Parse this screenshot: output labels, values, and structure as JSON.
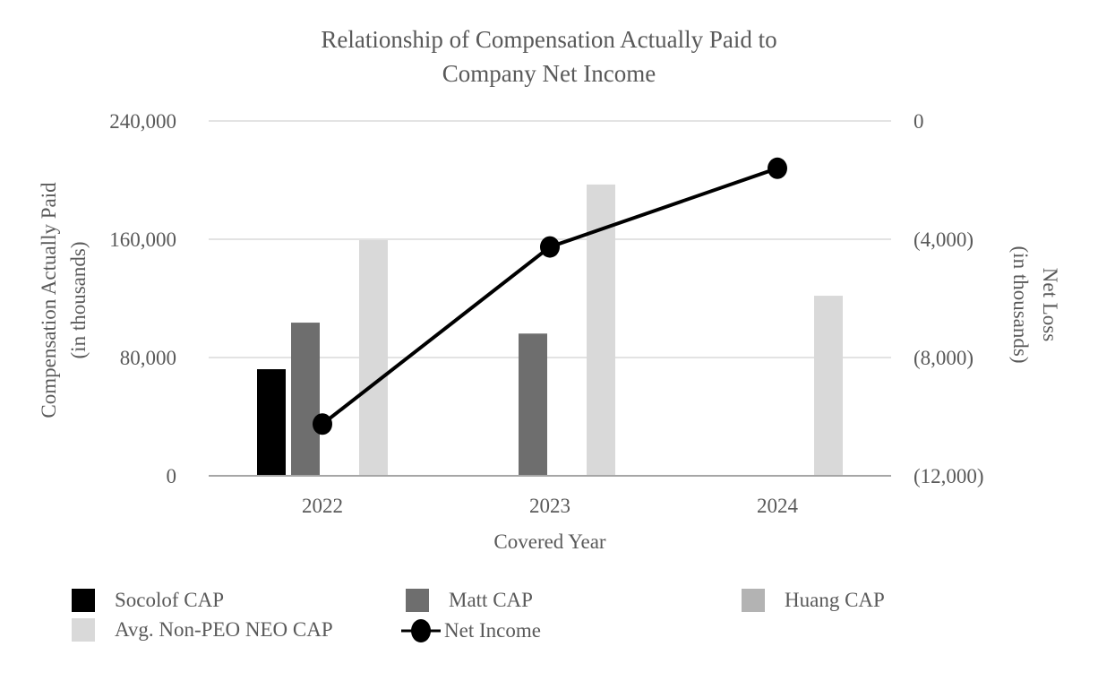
{
  "chart_data": {
    "type": "bar",
    "title_lines": [
      "Relationship of Compensation Actually Paid to",
      "Company Net Income"
    ],
    "xlabel": "Covered Year",
    "ylabel_lines": [
      "Compensation Actually Paid",
      "(in thousands)"
    ],
    "y2label_lines": [
      "Net Loss",
      "(in thousands)"
    ],
    "categories": [
      "2022",
      "2023",
      "2024"
    ],
    "ylim": [
      0,
      240000
    ],
    "y_ticks": [
      0,
      80000,
      160000,
      240000
    ],
    "y_tick_labels": [
      "0",
      "80,000",
      "160,000",
      "240,000"
    ],
    "y2lim": [
      -12000,
      0
    ],
    "y2_ticks": [
      -12000,
      -8000,
      -4000,
      0
    ],
    "y2_tick_labels": [
      "(12,000)",
      "(8,000)",
      "(4,000)",
      "0"
    ],
    "grid": true,
    "legend_position": "bottom",
    "series": [
      {
        "name": "Socolof CAP",
        "kind": "bar",
        "axis": "left",
        "color": "#000000",
        "values": [
          72100,
          null,
          null
        ]
      },
      {
        "name": "Matt CAP",
        "kind": "bar",
        "axis": "left",
        "color": "#6e6e6e",
        "values": [
          103600,
          96200,
          null
        ]
      },
      {
        "name": "Huang CAP",
        "kind": "bar",
        "axis": "left",
        "color": "#b3b3b3",
        "values": [
          null,
          null,
          null
        ]
      },
      {
        "name": "Avg. Non-PEO NEO CAP",
        "kind": "bar",
        "axis": "left",
        "color": "#d9d9d9",
        "values": [
          159400,
          197000,
          121800
        ]
      },
      {
        "name": "Net Income",
        "kind": "line",
        "axis": "right",
        "color": "#000000",
        "values": [
          -10250,
          -4260,
          -1600
        ]
      }
    ]
  }
}
